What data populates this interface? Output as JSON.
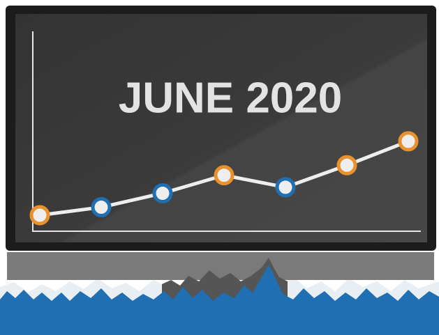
{
  "chart_data": {
    "type": "line",
    "title": "JUNE 2020",
    "categories": [
      null,
      null,
      null,
      null,
      null,
      null,
      null
    ],
    "values": [
      8,
      12,
      19,
      28,
      22,
      33,
      45
    ],
    "color": "#eeeeee",
    "marker_colors": [
      "#e8912d",
      "#1f6fb2",
      "#1f6fb2",
      "#e8912d",
      "#1f6fb2",
      "#e8912d",
      "#e8912d"
    ],
    "ylim": [
      0,
      100
    ],
    "grid": false
  }
}
